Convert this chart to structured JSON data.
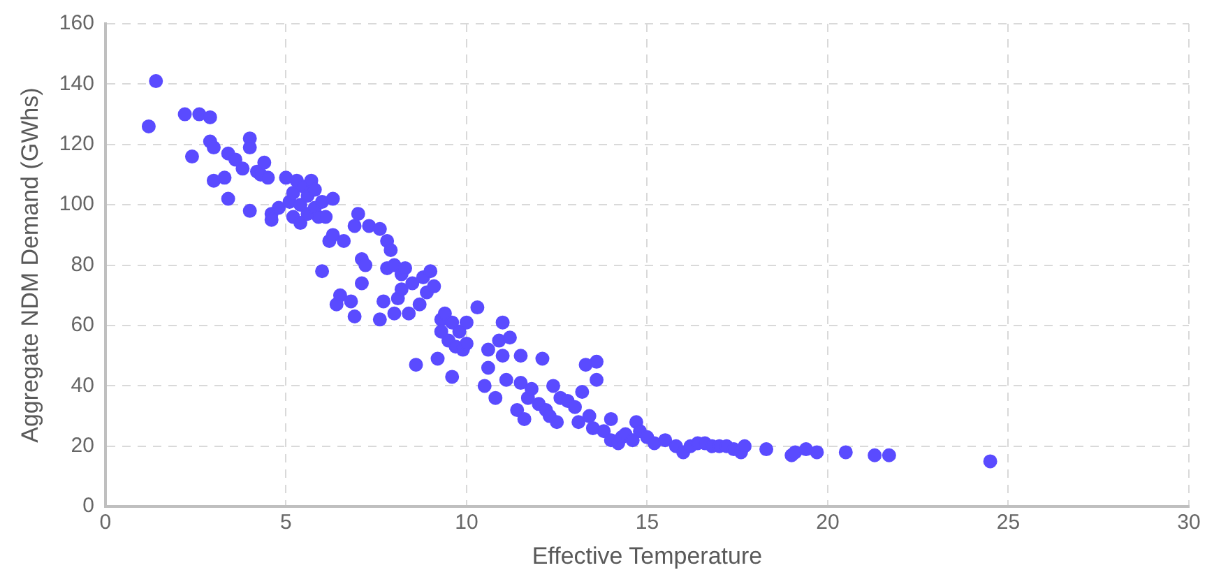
{
  "chart_data": {
    "type": "scatter",
    "xlabel": "Effective Temperature",
    "ylabel": "Aggregate NDM Demand (GWhs)",
    "xlim": [
      0,
      30
    ],
    "xticks": [
      0,
      5,
      10,
      15,
      20,
      25,
      30
    ],
    "ylim": [
      0,
      160
    ],
    "yticks": [
      0,
      20,
      40,
      60,
      80,
      100,
      120,
      140,
      160
    ],
    "grid": true,
    "legend": false,
    "marker": "circle",
    "series": [
      {
        "color": "#5a4bff",
        "x": [
          1.2,
          1.4,
          2.2,
          2.4,
          2.6,
          2.9,
          2.9,
          3.0,
          3.0,
          3.3,
          3.4,
          3.4,
          3.6,
          3.8,
          4.0,
          4.0,
          4.0,
          4.2,
          4.3,
          4.4,
          4.5,
          4.6,
          4.6,
          4.8,
          5.0,
          5.1,
          5.2,
          5.2,
          5.3,
          5.4,
          5.4,
          5.5,
          5.6,
          5.6,
          5.7,
          5.8,
          5.8,
          5.9,
          6.0,
          6.0,
          6.1,
          6.2,
          6.3,
          6.3,
          6.4,
          6.5,
          6.6,
          6.8,
          6.9,
          6.9,
          7.0,
          7.1,
          7.1,
          7.2,
          7.3,
          7.6,
          7.6,
          7.7,
          7.8,
          7.8,
          7.9,
          8.0,
          8.0,
          8.1,
          8.2,
          8.2,
          8.3,
          8.4,
          8.5,
          8.6,
          8.7,
          8.8,
          8.9,
          9.0,
          9.1,
          9.2,
          9.3,
          9.3,
          9.4,
          9.5,
          9.6,
          9.6,
          9.7,
          9.8,
          9.9,
          10.0,
          10.0,
          10.3,
          10.5,
          10.6,
          10.6,
          10.8,
          10.9,
          11.0,
          11.0,
          11.1,
          11.2,
          11.4,
          11.5,
          11.5,
          11.6,
          11.7,
          11.8,
          12.0,
          12.1,
          12.2,
          12.3,
          12.4,
          12.5,
          12.6,
          12.8,
          13.0,
          13.1,
          13.2,
          13.3,
          13.4,
          13.5,
          13.6,
          13.6,
          13.8,
          14.0,
          14.0,
          14.2,
          14.3,
          14.4,
          14.6,
          14.7,
          14.8,
          15.0,
          15.2,
          15.5,
          15.8,
          16.0,
          16.2,
          16.4,
          16.6,
          16.8,
          17.0,
          17.2,
          17.4,
          17.6,
          17.7,
          18.3,
          19.0,
          19.1,
          19.4,
          19.7,
          20.5,
          21.3,
          21.7,
          24.5
        ],
        "values": [
          126,
          141,
          130,
          116,
          130,
          129,
          121,
          108,
          119,
          109,
          102,
          117,
          115,
          112,
          122,
          119,
          98,
          111,
          110,
          114,
          109,
          97,
          95,
          99,
          109,
          101,
          96,
          104,
          108,
          94,
          100,
          106,
          103,
          97,
          108,
          99,
          105,
          96,
          101,
          78,
          96,
          88,
          102,
          90,
          67,
          70,
          88,
          68,
          63,
          93,
          97,
          74,
          82,
          80,
          93,
          62,
          92,
          68,
          88,
          79,
          85,
          64,
          80,
          69,
          77,
          72,
          79,
          64,
          74,
          47,
          67,
          76,
          71,
          78,
          73,
          49,
          62,
          58,
          64,
          55,
          61,
          43,
          53,
          58,
          52,
          54,
          61,
          66,
          40,
          46,
          52,
          36,
          55,
          61,
          50,
          42,
          56,
          32,
          41,
          50,
          29,
          36,
          39,
          34,
          49,
          32,
          30,
          40,
          28,
          36,
          35,
          33,
          28,
          38,
          47,
          30,
          26,
          48,
          42,
          25,
          22,
          29,
          21,
          23,
          24,
          22,
          28,
          25,
          23,
          21,
          22,
          20,
          18,
          20,
          21,
          21,
          20,
          20,
          20,
          19,
          18,
          20,
          19,
          17,
          18,
          19,
          18,
          18,
          17,
          17,
          15
        ]
      }
    ]
  }
}
